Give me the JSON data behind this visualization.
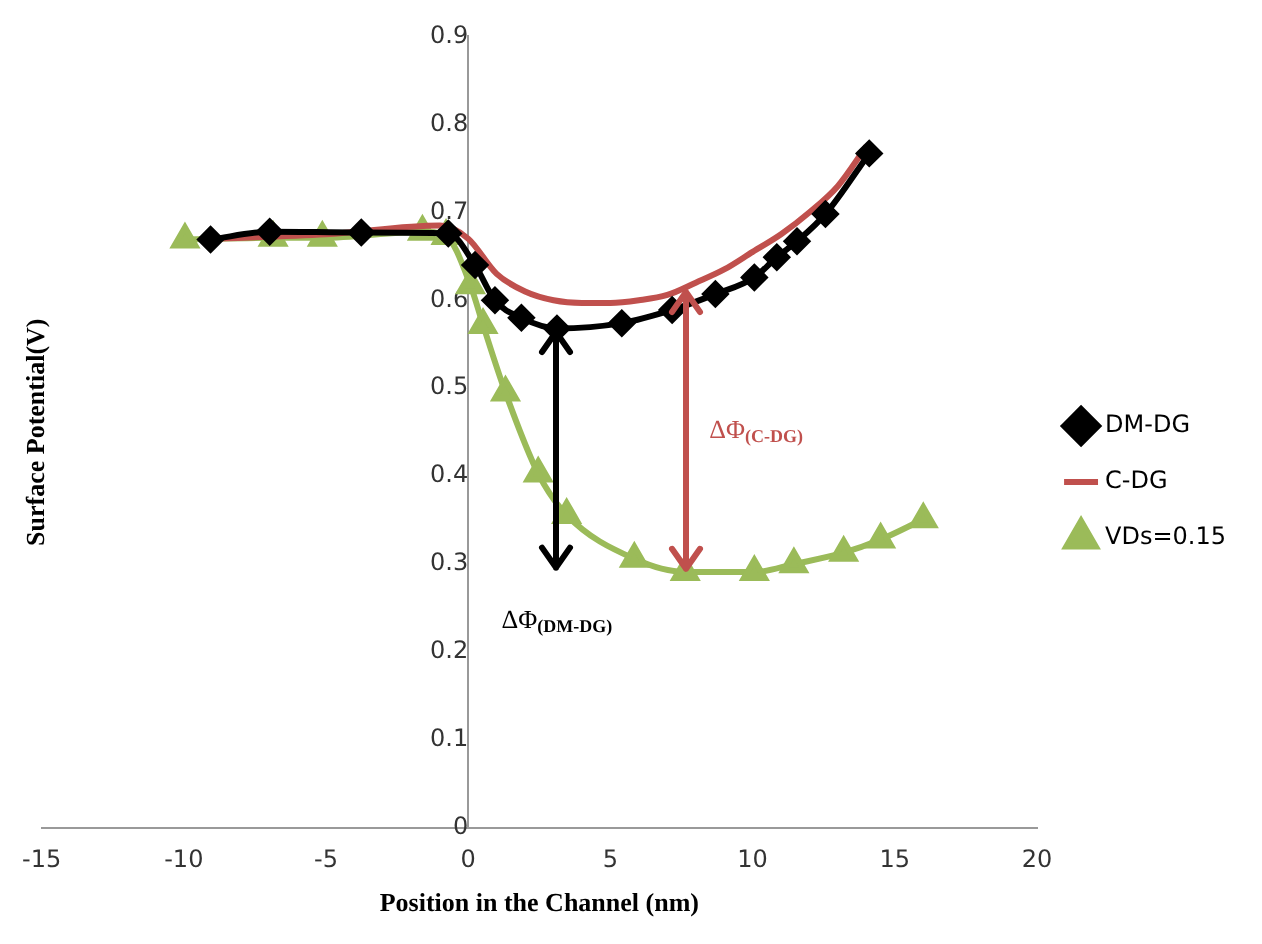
{
  "chart_data": {
    "type": "line",
    "xlabel": "Position in the Channel (nm)",
    "ylabel": "Surface Potential(V)",
    "xlim": [
      -15,
      20
    ],
    "xticks": [
      -15,
      -10,
      -5,
      0,
      5,
      10,
      15,
      20
    ],
    "ylim": [
      0,
      0.9
    ],
    "yticks": [
      0,
      0.1,
      0.2,
      0.3,
      0.4,
      0.5,
      0.6,
      0.7,
      0.8,
      0.9
    ],
    "grid": false,
    "legend": "right",
    "series": [
      {
        "name": "DM-DG",
        "color": "#000000",
        "marker": "diamond",
        "x": [
          -9.06,
          -6.98,
          -3.76,
          -0.7,
          0.24,
          0.94,
          1.87,
          3.12,
          5.4,
          7.17,
          8.69,
          10.06,
          10.85,
          11.56,
          12.56,
          14.1
        ],
        "values": [
          0.669,
          0.678,
          0.677,
          0.676,
          0.64,
          0.6,
          0.58,
          0.568,
          0.574,
          0.589,
          0.607,
          0.626,
          0.649,
          0.667,
          0.698,
          0.767
        ]
      },
      {
        "name": "C-DG",
        "color": "#c0504d",
        "marker": "none",
        "x": [
          -9,
          -5,
          -1,
          0,
          1,
          2,
          3,
          4,
          5,
          6,
          7,
          8,
          9,
          10,
          11,
          12,
          13,
          14
        ],
        "values": [
          0.67,
          0.675,
          0.685,
          0.67,
          0.63,
          0.61,
          0.6,
          0.597,
          0.597,
          0.6,
          0.606,
          0.62,
          0.635,
          0.655,
          0.675,
          0.7,
          0.73,
          0.775
        ]
      },
      {
        "name": "VDs=0.15",
        "color": "#9bbb59",
        "marker": "triangle",
        "x": [
          -9.96,
          -6.86,
          -5.13,
          -1.61,
          -0.78,
          0.08,
          0.52,
          1.31,
          2.46,
          3.46,
          5.84,
          7.63,
          10.06,
          11.45,
          13.2,
          14.5,
          16.0
        ],
        "values": [
          0.669,
          0.671,
          0.671,
          0.678,
          0.673,
          0.617,
          0.572,
          0.495,
          0.403,
          0.356,
          0.306,
          0.291,
          0.291,
          0.3,
          0.313,
          0.328,
          0.351
        ]
      }
    ],
    "annotations": [
      "ΔΦ$_{(DM-DG)}$",
      "ΔΦ$_{(C-DG)}$"
    ]
  }
}
